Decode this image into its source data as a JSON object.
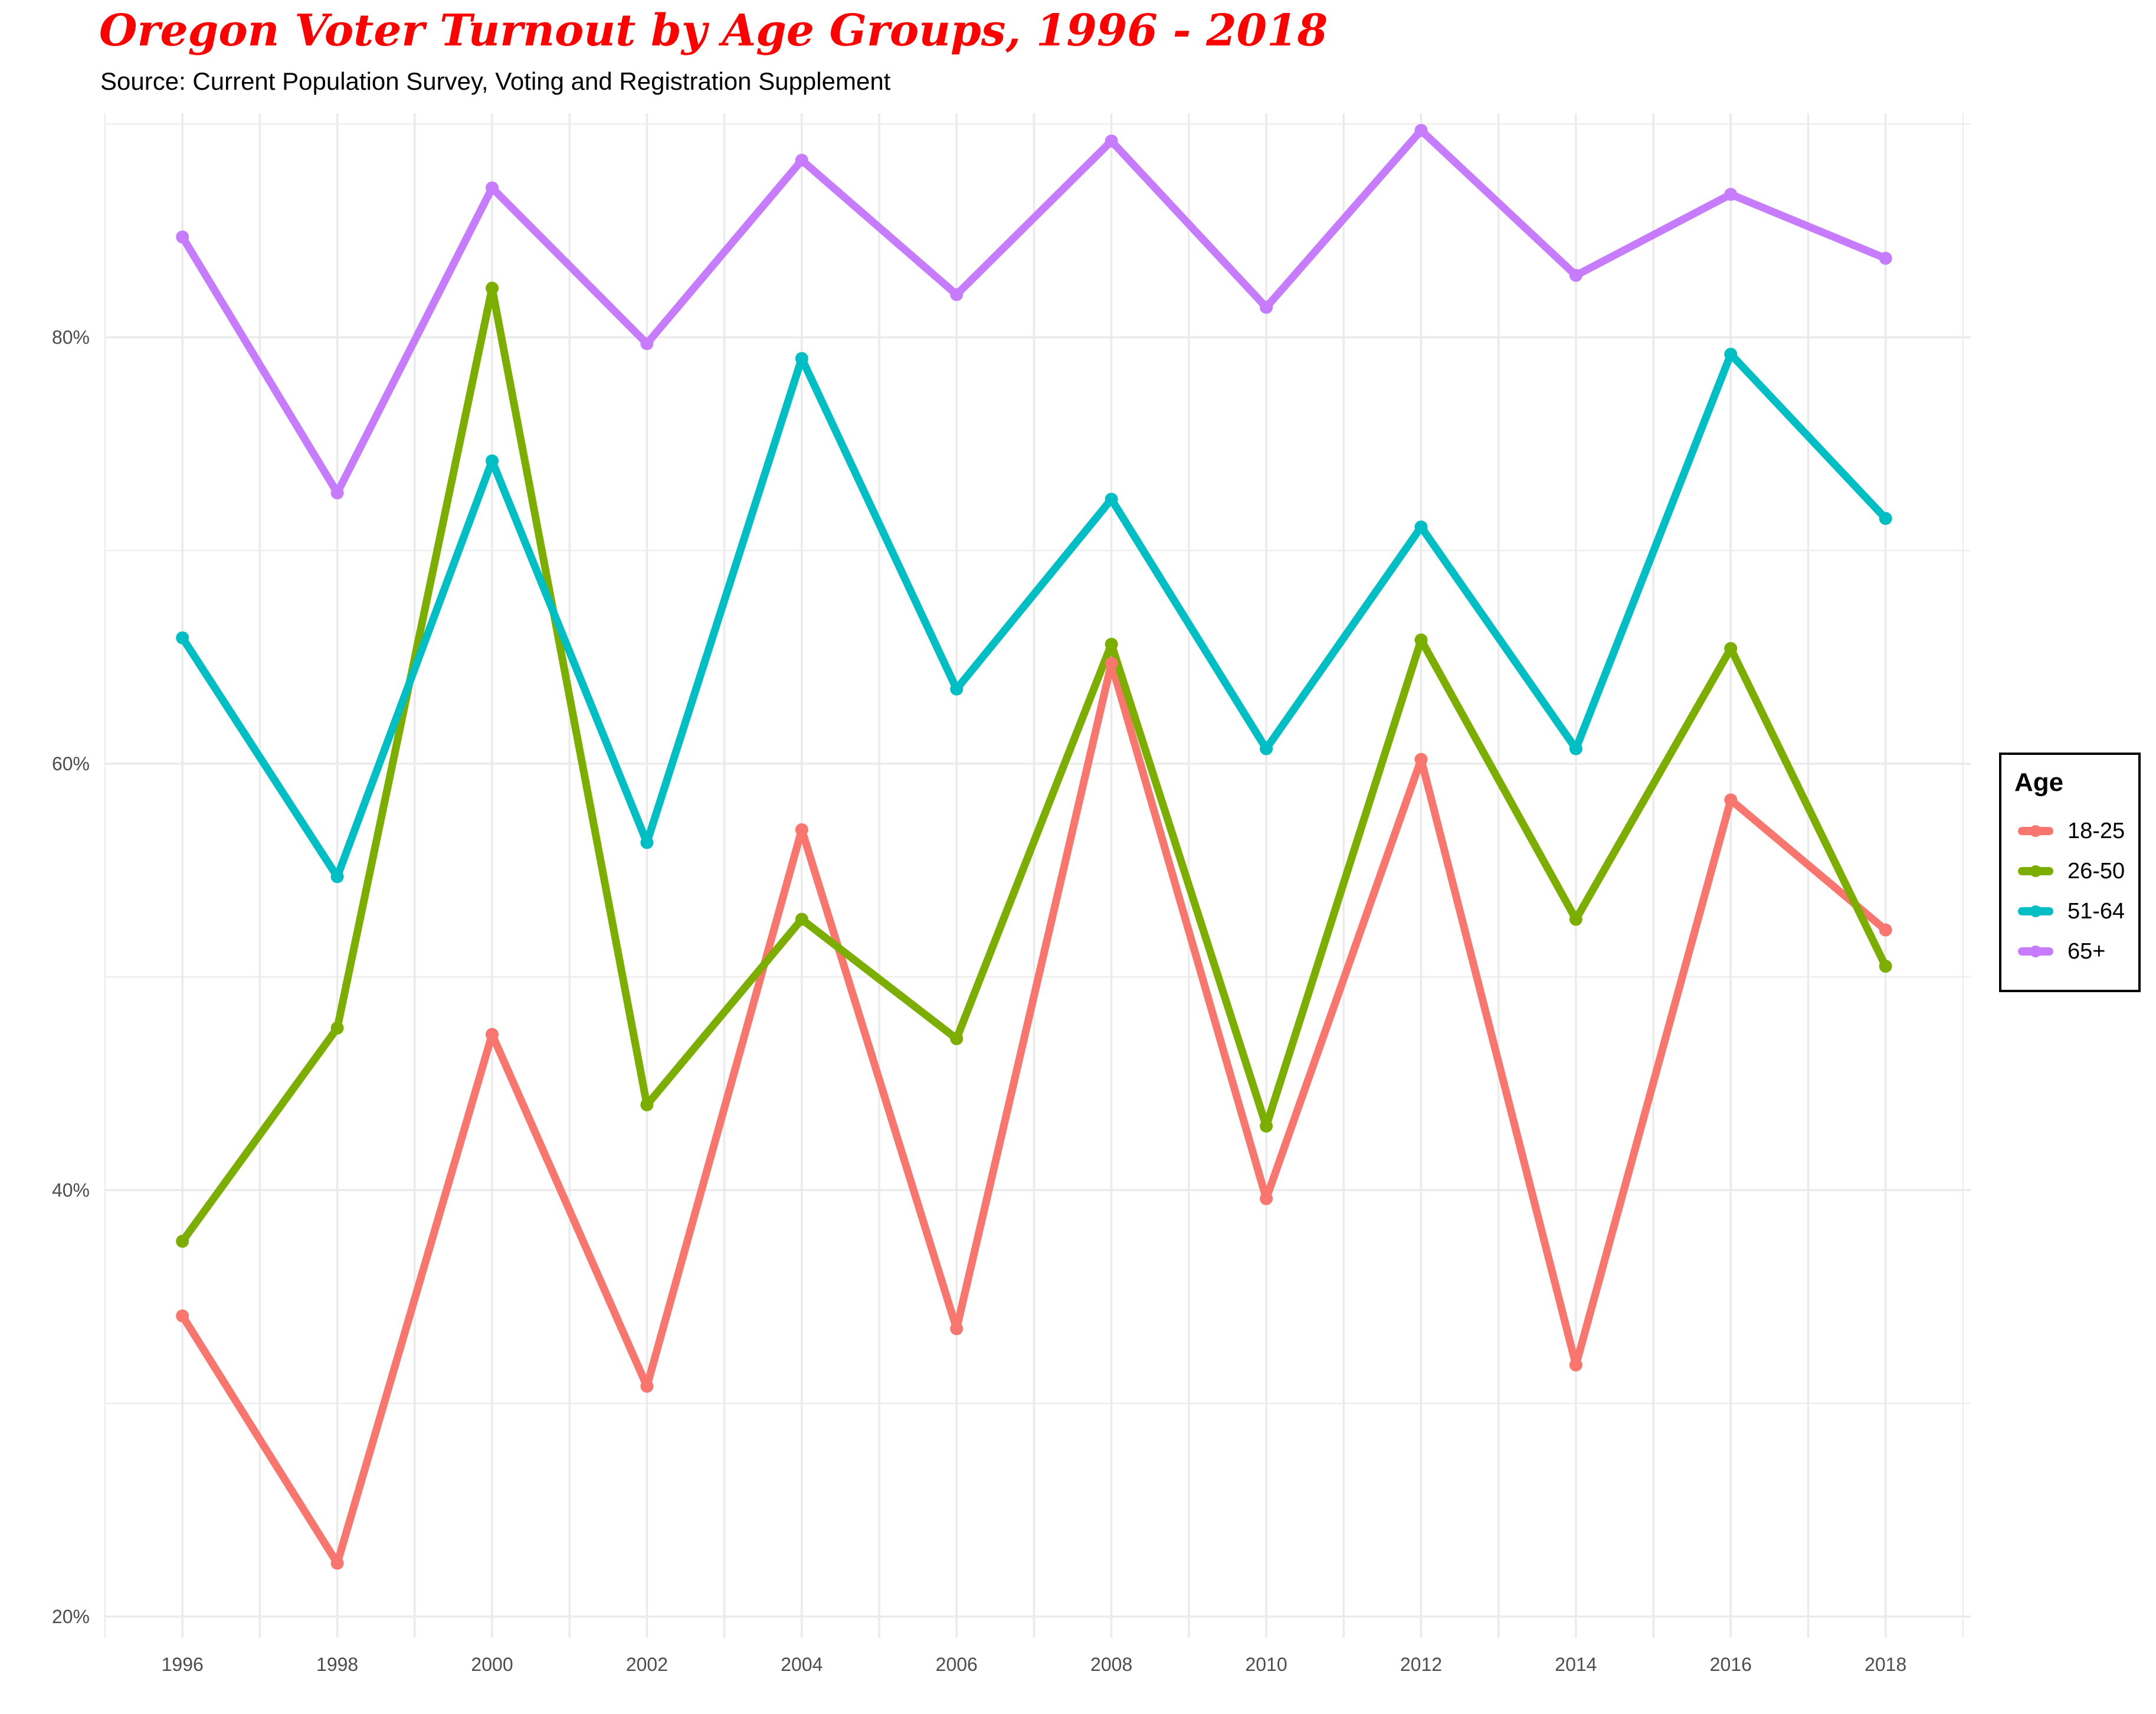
{
  "title": "Oregon Voter Turnout by Age Groups, 1996 - 2018",
  "subtitle": "Source: Current Population Survey, Voting and Registration Supplement",
  "colors": {
    "title": "#ff0000",
    "grid": "#ebebeb",
    "axis_text": "#4d4d4d"
  },
  "legend": {
    "title": "Age"
  },
  "chart_data": {
    "type": "line",
    "x": [
      1996,
      1998,
      2000,
      2002,
      2004,
      2006,
      2008,
      2010,
      2012,
      2014,
      2016,
      2018
    ],
    "x_tick_labels": [
      "1996",
      "1998",
      "2000",
      "2002",
      "2004",
      "2006",
      "2008",
      "2010",
      "2012",
      "2014",
      "2016",
      "2018"
    ],
    "y_ticks": [
      0.2,
      0.4,
      0.6,
      0.8
    ],
    "y_tick_labels": [
      "20%",
      "40%",
      "60%",
      "80%"
    ],
    "xlim": [
      1995.0,
      2019.1
    ],
    "ylim": [
      0.2,
      0.9
    ],
    "legend_position": "right",
    "grid": true,
    "series": [
      {
        "name": "18-25",
        "color": "#F8766D",
        "values": [
          0.341,
          0.225,
          0.473,
          0.308,
          0.569,
          0.335,
          0.647,
          0.396,
          0.602,
          0.318,
          0.583,
          0.522
        ]
      },
      {
        "name": "26-50",
        "color": "#7CAE00",
        "values": [
          0.376,
          0.476,
          0.823,
          0.44,
          0.527,
          0.471,
          0.656,
          0.43,
          0.658,
          0.527,
          0.654,
          0.505
        ]
      },
      {
        "name": "51-64",
        "color": "#00BFC4",
        "values": [
          0.659,
          0.547,
          0.742,
          0.563,
          0.79,
          0.635,
          0.724,
          0.607,
          0.711,
          0.607,
          0.792,
          0.715
        ]
      },
      {
        "name": "65+",
        "color": "#C77CFF",
        "values": [
          0.847,
          0.727,
          0.87,
          0.797,
          0.883,
          0.82,
          0.892,
          0.814,
          0.897,
          0.829,
          0.867,
          0.837
        ]
      }
    ]
  }
}
